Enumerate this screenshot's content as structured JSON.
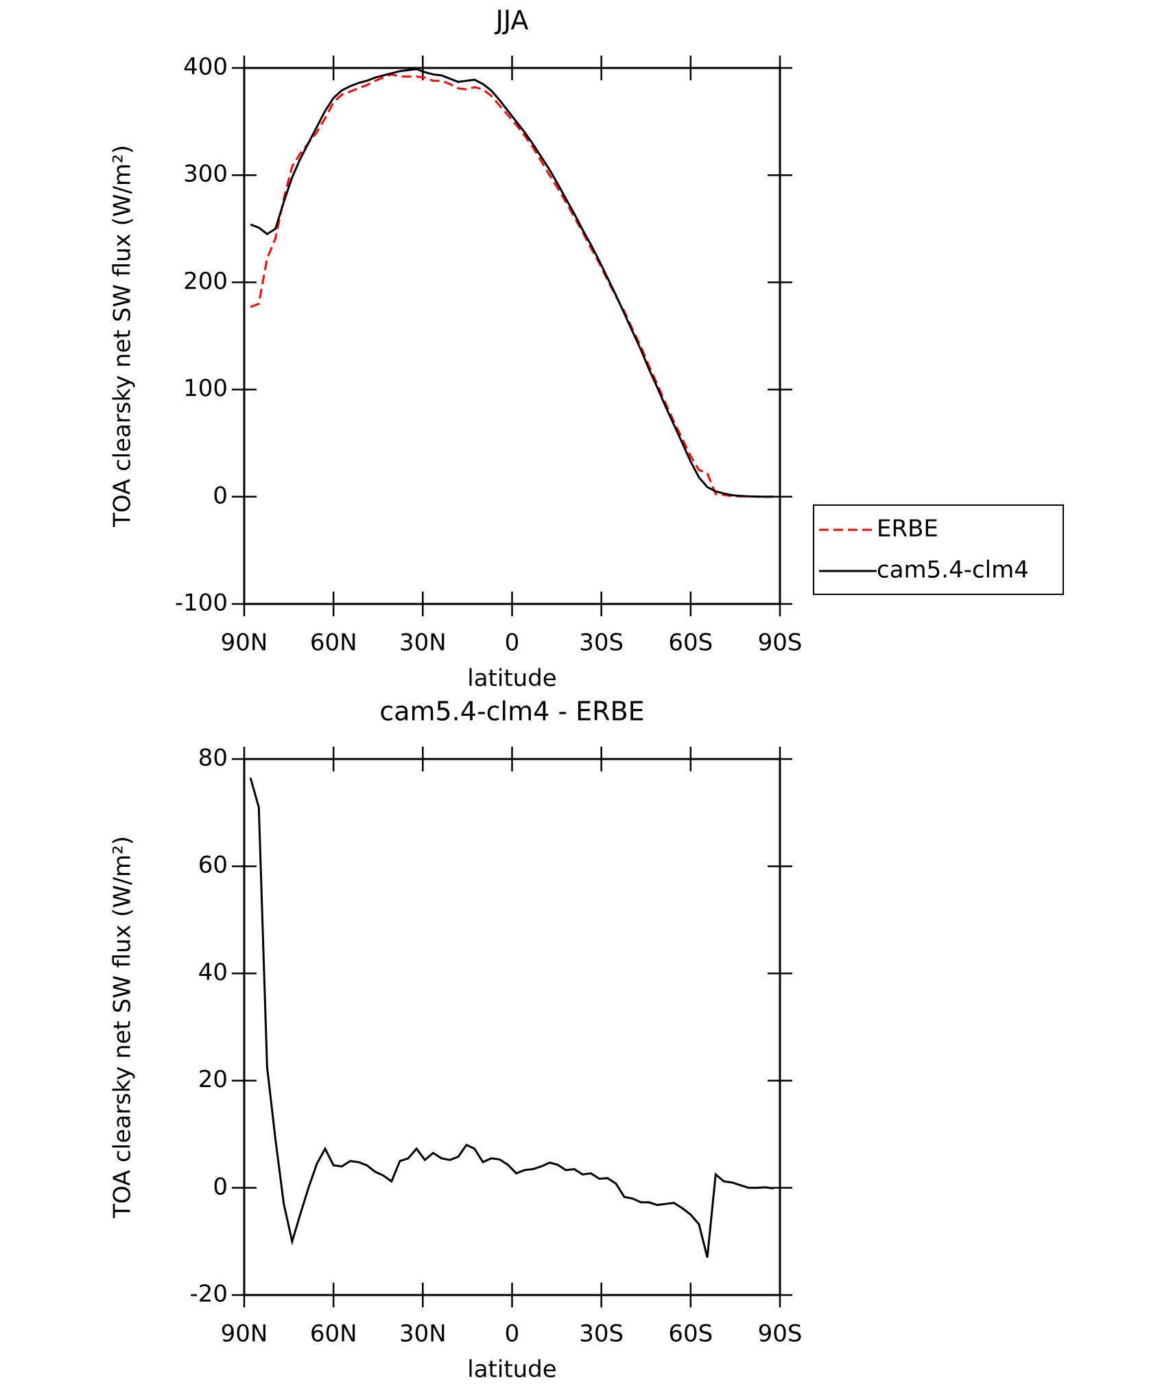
{
  "chart_data": [
    {
      "type": "line",
      "title": "JJA",
      "xlabel": "latitude",
      "ylabel": "TOA clearsky net SW flux (W/m²)",
      "x": [
        87.9,
        85.1,
        82.3,
        79.5,
        76.7,
        73.9,
        71.2,
        68.4,
        65.6,
        62.8,
        60.0,
        57.2,
        54.4,
        51.6,
        48.8,
        46.0,
        43.3,
        40.5,
        37.7,
        34.9,
        32.1,
        29.3,
        26.5,
        23.7,
        20.9,
        18.1,
        15.3,
        12.6,
        9.8,
        7.0,
        4.2,
        1.4,
        -1.4,
        -4.2,
        -7.0,
        -9.8,
        -12.6,
        -15.3,
        -18.1,
        -20.9,
        -23.7,
        -26.5,
        -29.3,
        -32.1,
        -34.9,
        -37.7,
        -40.5,
        -43.3,
        -46.0,
        -48.8,
        -51.6,
        -54.4,
        -57.2,
        -60.0,
        -62.8,
        -65.6,
        -68.4,
        -71.2,
        -73.9,
        -76.7,
        -79.5,
        -82.3,
        -85.1,
        -87.9
      ],
      "series": [
        {
          "name": "ERBE",
          "color": "#ff0000",
          "style": "dashed",
          "values": [
            177,
            180,
            222,
            241,
            278,
            308,
            320,
            330,
            340,
            353,
            368,
            375,
            378,
            381,
            384,
            388,
            391,
            394,
            392,
            392,
            392,
            391,
            388,
            388,
            385,
            381,
            380,
            382,
            380,
            374,
            365,
            356,
            347,
            337,
            326,
            313,
            300,
            288,
            275,
            261,
            247,
            232,
            218,
            202,
            187,
            173,
            156,
            140,
            122,
            105,
            87,
            70,
            54,
            38,
            25,
            22,
            2.5,
            1.8,
            0.5,
            0.3,
            0.3,
            0.1,
            -0.1,
            0.1
          ]
        },
        {
          "name": "cam5.4-clm4",
          "color": "#000000",
          "style": "solid",
          "values": [
            254,
            251,
            245,
            250,
            275,
            298,
            315,
            330,
            345,
            360,
            372,
            379,
            383,
            386,
            388,
            391,
            393,
            395,
            397,
            398,
            399,
            396,
            394,
            393,
            390,
            387,
            388,
            389,
            385,
            379,
            370,
            360,
            350,
            340,
            329,
            317,
            305,
            292,
            278,
            264,
            249,
            235,
            220,
            204,
            188,
            171,
            154,
            137,
            119,
            102,
            84,
            67,
            50,
            33,
            18,
            9,
            5,
            3,
            1.5,
            0.8,
            0.3,
            0.1,
            0,
            0
          ]
        }
      ],
      "xlim": [
        90,
        -90
      ],
      "xticks": [
        {
          "value": 90,
          "label": "90N"
        },
        {
          "value": 60,
          "label": "60N"
        },
        {
          "value": 30,
          "label": "30N"
        },
        0,
        {
          "value": -30,
          "label": "30S"
        },
        {
          "value": -60,
          "label": "60S"
        },
        {
          "value": -90,
          "label": "90S"
        }
      ],
      "ylim": [
        -100,
        400
      ],
      "yticks": [
        -100,
        0,
        100,
        200,
        300,
        400
      ],
      "legend": "right"
    },
    {
      "type": "line",
      "title": "cam5.4-clm4 - ERBE",
      "xlabel": "latitude",
      "ylabel": "TOA clearsky net SW flux (W/m²)",
      "x": [
        87.9,
        85.1,
        82.3,
        79.5,
        76.7,
        73.9,
        71.2,
        68.4,
        65.6,
        62.8,
        60.0,
        57.2,
        54.4,
        51.6,
        48.8,
        46.0,
        43.3,
        40.5,
        37.7,
        34.9,
        32.1,
        29.3,
        26.5,
        23.7,
        20.9,
        18.1,
        15.3,
        12.6,
        9.8,
        7.0,
        4.2,
        1.4,
        -1.4,
        -4.2,
        -7.0,
        -9.8,
        -12.6,
        -15.3,
        -18.1,
        -20.9,
        -23.7,
        -26.5,
        -29.3,
        -32.1,
        -34.9,
        -37.7,
        -40.5,
        -43.3,
        -46.0,
        -48.8,
        -51.6,
        -54.4,
        -57.2,
        -60.0,
        -62.8,
        -65.6,
        -68.4,
        -71.2,
        -73.9,
        -76.7,
        -79.5,
        -82.3,
        -85.1,
        -87.9
      ],
      "series": [
        {
          "color": "#000000",
          "style": "solid",
          "values": [
            76.5,
            71,
            22.5,
            9,
            -3,
            -10,
            -5,
            0,
            4.5,
            7.3,
            4.2,
            4,
            5,
            4.8,
            4.2,
            3,
            2.3,
            1.2,
            5,
            5.5,
            7.3,
            5.2,
            6.5,
            5.5,
            5.2,
            5.8,
            8,
            7.3,
            4.8,
            5.5,
            5.3,
            4.3,
            2.7,
            3.3,
            3.5,
            4,
            4.7,
            4.3,
            3.3,
            3.5,
            2.5,
            2.7,
            1.7,
            1.8,
            0.8,
            -1.7,
            -2,
            -2.7,
            -2.7,
            -3.2,
            -3,
            -2.8,
            -3.8,
            -5,
            -6.8,
            -13,
            2.5,
            1.2,
            1,
            0.5,
            0,
            0,
            0.1,
            -0.1
          ]
        }
      ],
      "xlim": [
        90,
        -90
      ],
      "xticks": [
        {
          "value": 90,
          "label": "90N"
        },
        {
          "value": 60,
          "label": "60N"
        },
        {
          "value": 30,
          "label": "30N"
        },
        0,
        {
          "value": -30,
          "label": "30S"
        },
        {
          "value": -60,
          "label": "60S"
        },
        {
          "value": -90,
          "label": "90S"
        }
      ],
      "ylim": [
        -20,
        80
      ],
      "yticks": [
        -20,
        0,
        20,
        40,
        60,
        80
      ]
    }
  ]
}
